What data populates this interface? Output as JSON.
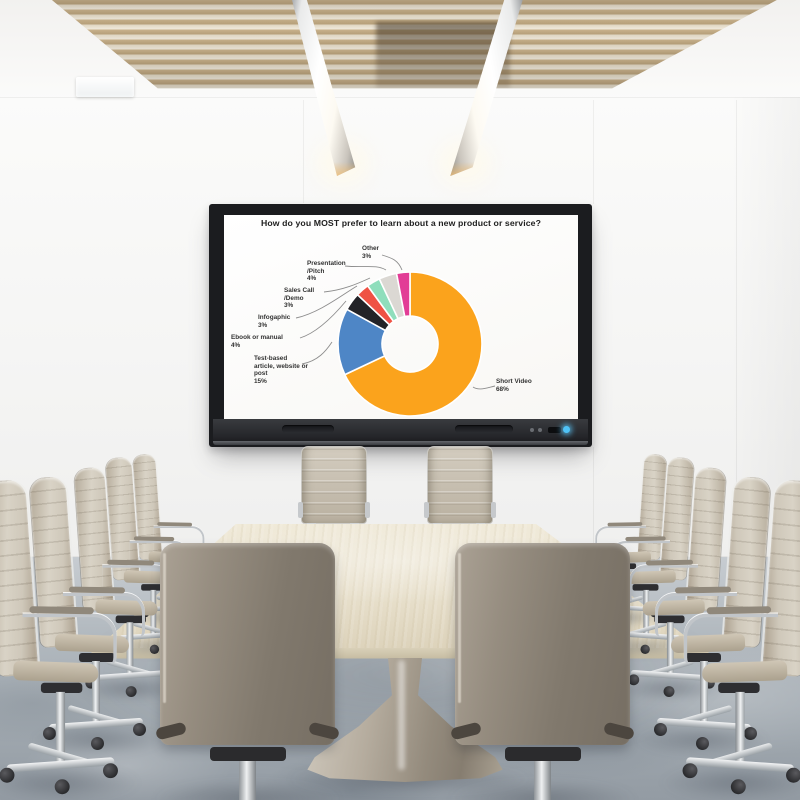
{
  "scene": {
    "room": "conference-room with wall-mounted interactive display, wood slat ceiling canopy, two linear pendant lights, wooden conference table on tulip pedestal and leather office chairs",
    "display_power_led": "#4fc3f7"
  },
  "chart_data": {
    "type": "pie",
    "donut": true,
    "title": "How do you MOST prefer to learn about a new product or service?",
    "categories": [
      "Short Video",
      "Test-based article, website or post",
      "Ebook or manual",
      "Infogaphic",
      "Sales Call /Demo",
      "Presentation /Pitch",
      "Other"
    ],
    "values": [
      68,
      15,
      4,
      3,
      3,
      4,
      3
    ],
    "unit": "%",
    "colors": [
      "#FBA31C",
      "#4E86C6",
      "#232327",
      "#EF5244",
      "#8FDEBC",
      "#DBD8D3",
      "#E23D96"
    ],
    "start_angle_deg": 0,
    "direction": "clockwise",
    "legend_position": "callout-labels",
    "callouts": [
      {
        "text": "Short Video\n68%"
      },
      {
        "text": "Test-based\narticle, website or\npost\n15%"
      },
      {
        "text": "Ebook or manual\n4%"
      },
      {
        "text": "Infogaphic\n3%"
      },
      {
        "text": "Sales Call\n/Demo\n3%"
      },
      {
        "text": "Presentation\n/Pitch\n4%"
      },
      {
        "text": "Other\n3%"
      }
    ]
  }
}
